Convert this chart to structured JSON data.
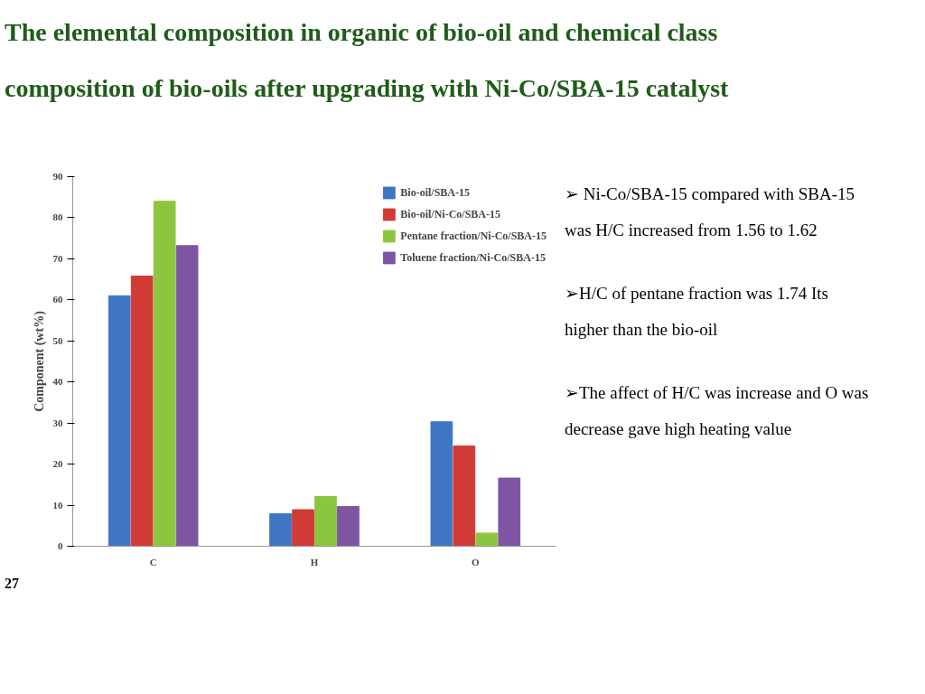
{
  "chart_data": {
    "type": "bar",
    "title": "The elemental composition in organic of bio-oil and chemical class composition of bio-oils after upgrading with Ni-Co/SBA-15 catalyst",
    "ylabel": "Component (wt%)",
    "categories": [
      "C",
      "H",
      "O"
    ],
    "series": [
      {
        "name": "Bio-oil/SBA-15",
        "color": "#3f76c4",
        "values": [
          61,
          7.9,
          30.3
        ]
      },
      {
        "name": "Bio-oil/Ni-Co/SBA-15",
        "color": "#d13b36",
        "values": [
          65.8,
          8.9,
          24.4
        ]
      },
      {
        "name": "Pentane fraction/Ni-Co/SBA-15",
        "color": "#8cc63e",
        "values": [
          84,
          12.1,
          3.2
        ]
      },
      {
        "name": "Toluene fraction/Ni-Co/SBA-15",
        "color": "#7d55a3",
        "values": [
          73.2,
          9.7,
          16.6
        ]
      }
    ],
    "ylim": [
      0,
      90
    ],
    "yticks": [
      0,
      10,
      20,
      30,
      40,
      50,
      60,
      70,
      80,
      90
    ],
    "grid": false,
    "legend": "top right",
    "annotations": [
      "➢ Ni-Co/SBA-15 compared with SBA-15 was H/C increased from 1.56 to 1.62",
      "➢H/C of pentane fraction was 1.74 Its higher than the bio-oil",
      "➢The affect of H/C was increase and O was decrease gave high heating value",
      "27"
    ]
  }
}
